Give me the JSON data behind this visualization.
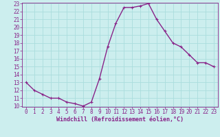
{
  "x": [
    0,
    1,
    2,
    3,
    4,
    5,
    6,
    7,
    8,
    9,
    10,
    11,
    12,
    13,
    14,
    15,
    16,
    17,
    18,
    19,
    20,
    21,
    22,
    23
  ],
  "y": [
    13,
    12,
    11.5,
    11,
    11,
    10.5,
    10.3,
    10,
    10.5,
    13.5,
    17.5,
    20.5,
    22.5,
    22.5,
    22.7,
    23,
    21,
    19.5,
    18,
    17.5,
    16.5,
    15.5,
    15.5,
    15
  ],
  "line_color": "#882288",
  "marker": "+",
  "background_color": "#cceeee",
  "grid_color": "#aadddd",
  "xlabel": "Windchill (Refroidissement éolien,°C)",
  "tick_color": "#882288",
  "ylim": [
    10,
    23
  ],
  "xlim": [
    -0.5,
    23.5
  ],
  "yticks": [
    10,
    11,
    12,
    13,
    14,
    15,
    16,
    17,
    18,
    19,
    20,
    21,
    22,
    23
  ],
  "xticks": [
    0,
    1,
    2,
    3,
    4,
    5,
    6,
    7,
    8,
    9,
    10,
    11,
    12,
    13,
    14,
    15,
    16,
    17,
    18,
    19,
    20,
    21,
    22,
    23
  ],
  "tick_fontsize": 5.5,
  "xlabel_fontsize": 6.0,
  "line_width": 1.0,
  "marker_size": 3,
  "marker_edge_width": 0.8
}
